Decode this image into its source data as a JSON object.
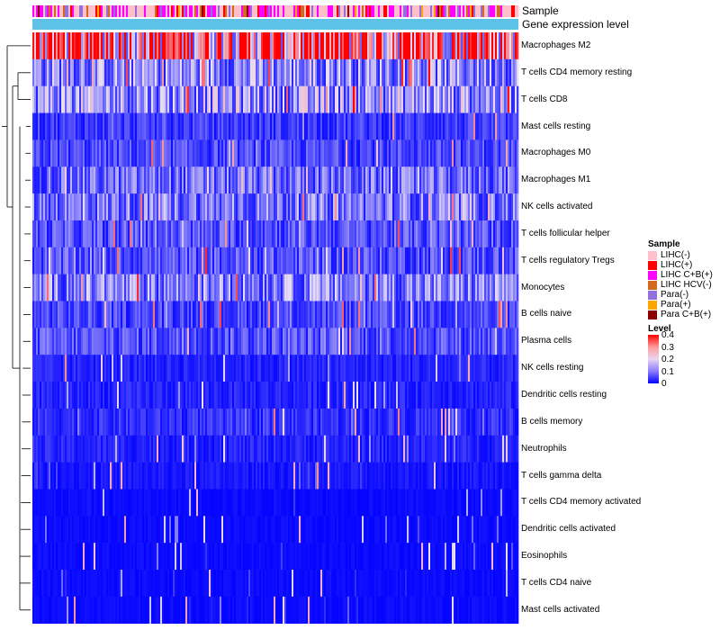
{
  "chart_data": {
    "type": "heatmap",
    "title": "",
    "annotation_tracks": [
      {
        "name": "Sample"
      },
      {
        "name": "Gene expression level"
      }
    ],
    "rows": [
      "Macrophages M2",
      "T cells CD4 memory resting",
      "T cells CD8",
      "Mast cells resting",
      "Macrophages M0",
      "Macrophages M1",
      "NK cells activated",
      "T cells follicular helper",
      "T cells regulatory  Tregs",
      "Monocytes",
      "B cells naive",
      "Plasma cells",
      "NK cells resting",
      "Dendritic cells resting",
      "B cells memory",
      "Neutrophils",
      "T cells gamma delta",
      "T cells CD4 memory activated",
      "Dendritic cells activated",
      "Eosinophils",
      "T cells CD4 naive",
      "Mast cells activated"
    ],
    "row_mean_level": [
      0.32,
      0.12,
      0.13,
      0.05,
      0.06,
      0.09,
      0.1,
      0.07,
      0.07,
      0.11,
      0.06,
      0.07,
      0.03,
      0.03,
      0.04,
      0.03,
      0.02,
      0.01,
      0.01,
      0.01,
      0.01,
      0.01
    ],
    "legend": {
      "sample_title": "Sample",
      "sample_groups": [
        {
          "label": "LIHC(-)",
          "color": "#ffc0cb"
        },
        {
          "label": "LIHC(+)",
          "color": "#ff0000"
        },
        {
          "label": "LIHC C+B(+)",
          "color": "#ff00ff"
        },
        {
          "label": "LIHC HCV(-)",
          "color": "#d2691e"
        },
        {
          "label": "Para(-)",
          "color": "#9370db"
        },
        {
          "label": "Para(+)",
          "color": "#ffa500"
        },
        {
          "label": "Para C+B(+)",
          "color": "#8b0000"
        }
      ],
      "level_title": "Level",
      "level_ticks": [
        "0.4",
        "0.3",
        "0.2",
        "0.1",
        "0"
      ],
      "level_range": [
        0,
        0.4
      ]
    },
    "colors": {
      "low": "#0000ff",
      "mid": "#ffffff",
      "high": "#ff0000",
      "expression_track": "#5ec1e6"
    }
  }
}
